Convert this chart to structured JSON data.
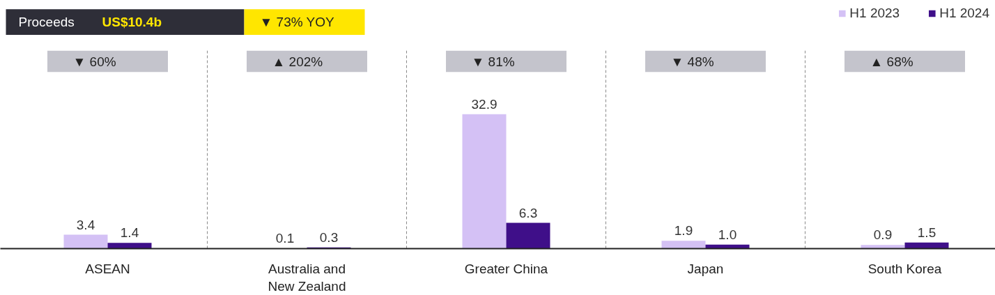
{
  "chart_data": {
    "type": "bar",
    "title": "Proceeds",
    "subtitle": "US$10.4b",
    "categories": [
      "ASEAN",
      "Australia and New Zealand",
      "Greater China",
      "Japan",
      "South Korea"
    ],
    "series": [
      {
        "name": "H1 2023",
        "color": "#d4c1f5",
        "values": [
          3.4,
          0.1,
          32.9,
          1.9,
          0.9
        ],
        "value_labels": [
          "3.4",
          "0.1",
          "32.9",
          "1.9",
          "0.9"
        ]
      },
      {
        "name": "H1 2024",
        "color": "#3f0f89",
        "values": [
          1.4,
          0.3,
          6.3,
          1.0,
          1.5
        ],
        "value_labels": [
          "1.4",
          "0.3",
          "6.3",
          "1.0",
          "1.5"
        ]
      }
    ],
    "legend": "top right",
    "grid": false,
    "annotations": [
      "▼ 73% YOY",
      "▼ 60%",
      "▲ 202%",
      "▼ 81%",
      "▼ 48%",
      "▲ 68%"
    ]
  }
}
